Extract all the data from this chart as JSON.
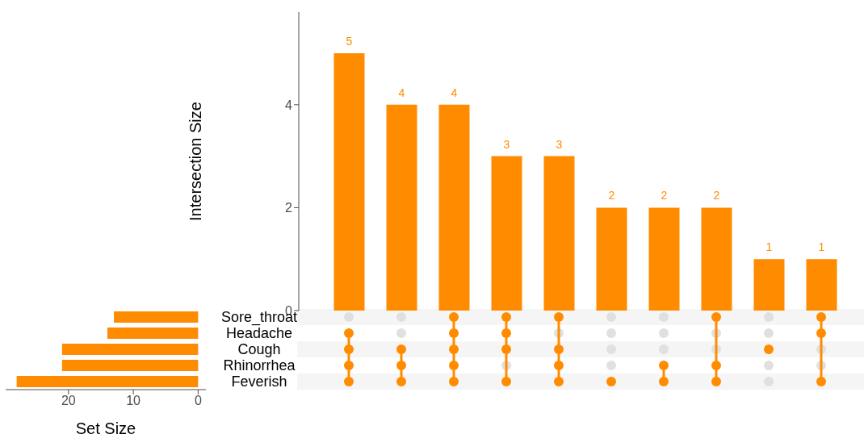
{
  "chart_data": [
    {
      "type": "bar",
      "categories": [
        null,
        null,
        null,
        null,
        null,
        null,
        null,
        null,
        null,
        null
      ],
      "values": [
        5,
        4,
        4,
        3,
        3,
        2,
        2,
        2,
        1,
        1
      ],
      "color": "#ff8c00",
      "ylabel": "Intersection Size",
      "ylim": [
        0,
        5.8
      ],
      "yticks": [
        0,
        2,
        4
      ],
      "data_labels": true,
      "grid": false,
      "tick_labels": "y"
    },
    {
      "type": "bar",
      "orientation": "horizontal",
      "categories": [
        "Sore_throat",
        "Headache",
        "Cough",
        "Rhinorrhea",
        "Feverish"
      ],
      "values": [
        13,
        14,
        21,
        21,
        28
      ],
      "color": "#ff8c00",
      "xlabel": "Set Size",
      "xlim": [
        29.7,
        -1.2
      ],
      "xticks": [
        20,
        10,
        0
      ],
      "grid": false
    }
  ]
}
